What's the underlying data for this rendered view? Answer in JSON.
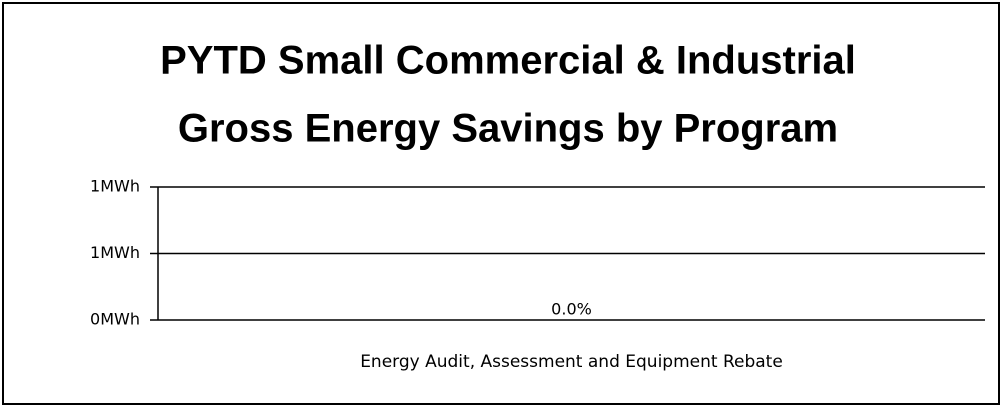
{
  "chart_data": {
    "type": "bar",
    "title": [
      "PYTD Small Commercial & Industrial",
      "Gross Energy Savings by Program"
    ],
    "categories": [
      "Energy Audit, Assessment and Equipment Rebate"
    ],
    "values": [
      0
    ],
    "value_labels": [
      "0.0%"
    ],
    "color": "#4f81bd",
    "ylim": [
      0,
      1
    ],
    "yticks": [
      {
        "value": 0,
        "label": "0MWh"
      },
      {
        "value": 0.5,
        "label": "1MWh"
      },
      {
        "value": 1,
        "label": "1MWh"
      }
    ],
    "grid": true
  }
}
